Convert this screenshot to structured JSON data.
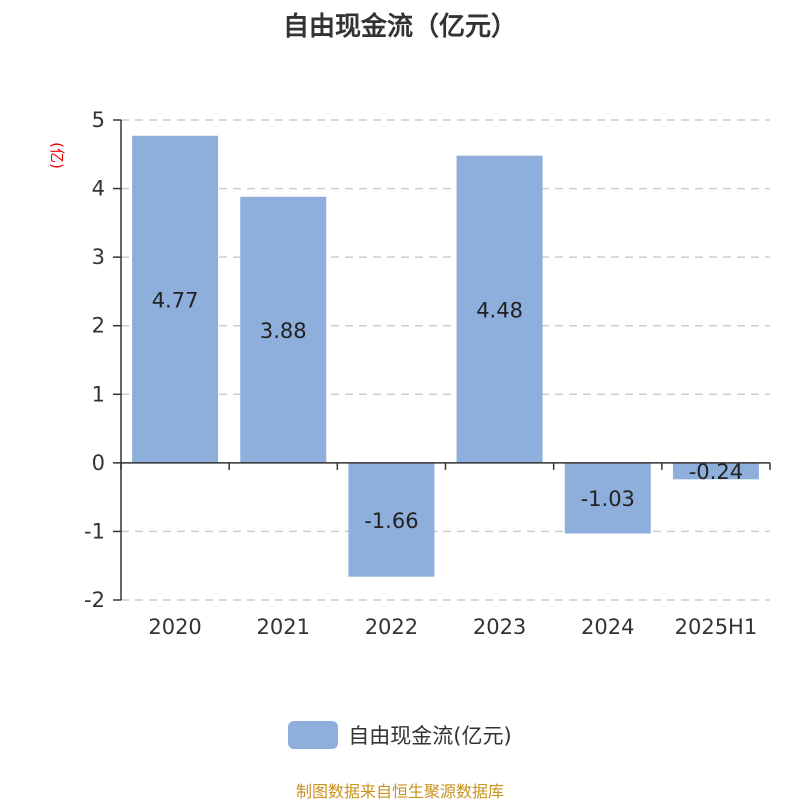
{
  "chart_data": {
    "type": "bar",
    "title": "自由现金流（亿元）",
    "ylabel": "(亿)",
    "categories": [
      "2020",
      "2021",
      "2022",
      "2023",
      "2024",
      "2025H1"
    ],
    "series": [
      {
        "name": "自由现金流(亿元)",
        "values": [
          4.77,
          3.88,
          -1.66,
          4.48,
          -1.03,
          -0.24
        ],
        "labels": [
          "4.77",
          "3.88",
          "-1.66",
          "4.48",
          "-1.03",
          "-0.24"
        ],
        "color": "#8eaedb"
      }
    ],
    "ylim": [
      -2,
      5
    ],
    "yticks": [
      5,
      4,
      3,
      2,
      1,
      0,
      -1,
      -2
    ],
    "grid": true,
    "legend": "bottom"
  },
  "source": "制图数据来自恒生聚源数据库"
}
